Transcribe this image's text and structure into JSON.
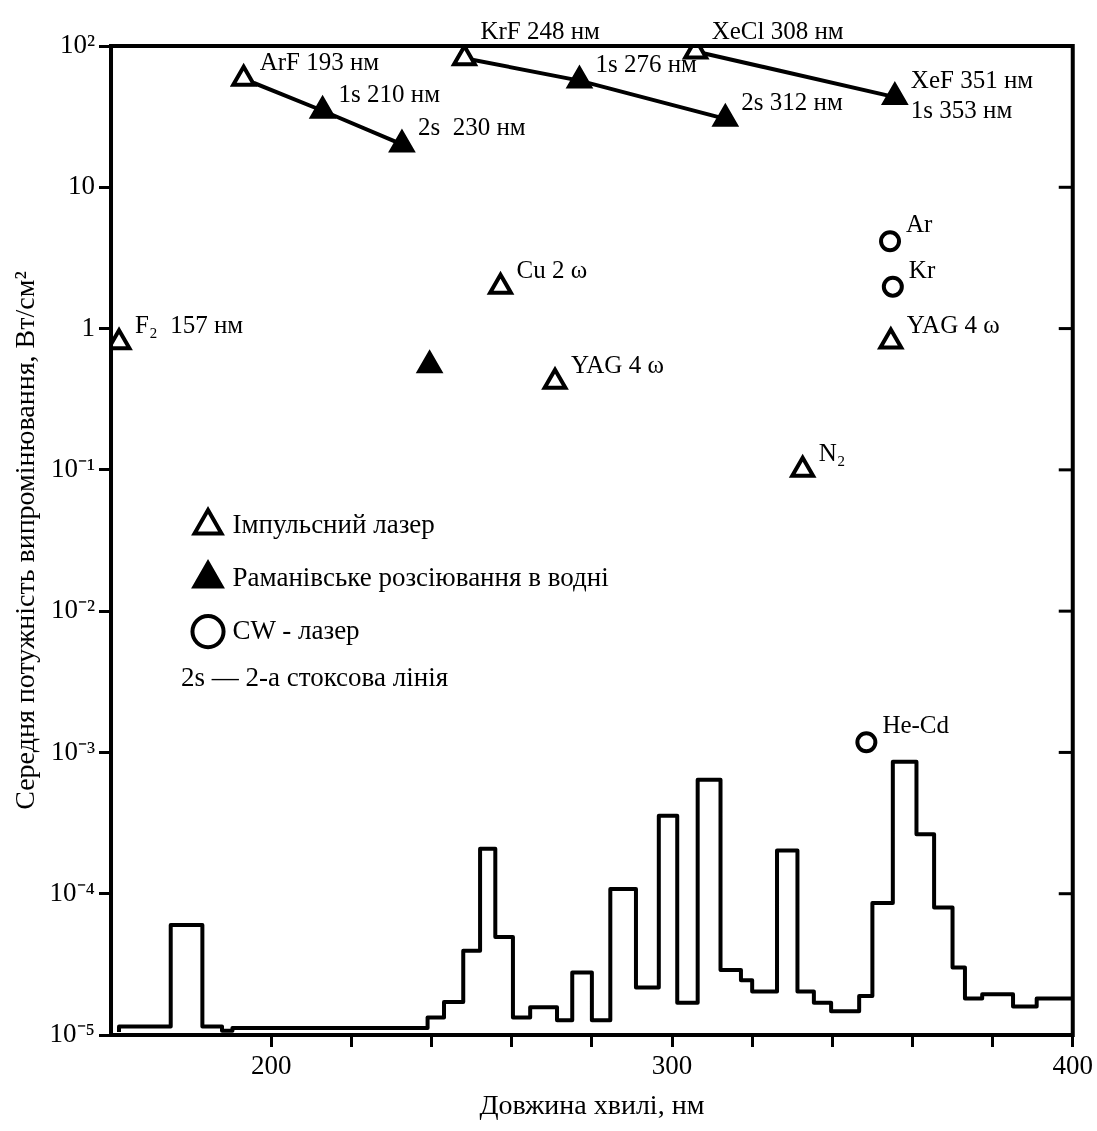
{
  "chart_data": {
    "type": "scatter",
    "xlabel": "Довжина хвилі, нм",
    "ylabel": "Середня потужність випромінювання, Вт/см²",
    "xlim": [
      160,
      400
    ],
    "xticks": [
      200,
      {
        "value": 220,
        "label": null
      },
      {
        "value": 240,
        "label": null
      },
      {
        "value": 260,
        "label": null
      },
      {
        "value": 280,
        "label": null
      },
      300,
      {
        "value": 320,
        "label": null
      },
      {
        "value": 340,
        "label": null
      },
      {
        "value": 360,
        "label": null
      },
      {
        "value": 380,
        "label": null
      },
      400
    ],
    "ylim": [
      1e-05,
      100
    ],
    "yticks": [
      {
        "value": 1e-05,
        "label": "10⁻⁵"
      },
      {
        "value": 0.0001,
        "label": "10⁻⁴"
      },
      {
        "value": 0.001,
        "label": "10⁻³"
      },
      {
        "value": 0.01,
        "label": "10⁻²"
      },
      {
        "value": 0.1,
        "label": "10⁻¹"
      },
      1,
      10,
      {
        "value": 100,
        "label": "10²"
      }
    ],
    "log": "y",
    "grid": false,
    "legend": "left",
    "series": [
      {
        "name": "Імпульсний лазер",
        "marker": "triangle",
        "color": "#ffffff",
        "x": [
          162,
          193.1,
          248.2,
          305.9,
          257.2,
          270.8,
          354.6,
          332.6
        ],
        "values": [
          0.8,
          58.6,
          82,
          91.5,
          1.98,
          0.42,
          0.81,
          0.1
        ]
      },
      {
        "name": "Раманівське розсіювання в водні",
        "marker": "triangle",
        "color": "#000000",
        "x": [
          212.8,
          232.6,
          276.9,
          313.3,
          355.6,
          239.5
        ],
        "values": [
          34.8,
          20.1,
          56.9,
          30.5,
          43.5,
          0.55
        ]
      },
      {
        "name": "CW - лазер",
        "marker": "circle",
        "color": "#ffffff",
        "x": [
          354.4,
          355.1,
          348.5
        ],
        "values": [
          4.15,
          1.98,
          0.00118
        ]
      },
      {
        "type": "line",
        "marker": "none",
        "color": "#000000",
        "x": [
          193.1,
          212.8,
          232.6
        ],
        "values": [
          58.6,
          34.8,
          20.1
        ]
      },
      {
        "type": "line",
        "marker": "none",
        "color": "#000000",
        "x": [
          248.2,
          276.9,
          313.3
        ],
        "values": [
          82,
          56.9,
          30.5
        ]
      },
      {
        "type": "line",
        "marker": "none",
        "color": "#000000",
        "x": [
          305.9,
          355.6
        ],
        "values": [
          91.5,
          43.5
        ]
      },
      {
        "type": "step",
        "marker": "none",
        "color": "#000000",
        "x": [
          162,
          174.9,
          182.8,
          187.7,
          190.3,
          239,
          243.1,
          247.9,
          252.1,
          255.9,
          260.3,
          264.6,
          271.3,
          275.1,
          280,
          284.6,
          291,
          296.7,
          301.3,
          306.4,
          312.1,
          317.2,
          320,
          326.2,
          331.3,
          335.4,
          339.7,
          346.7,
          350,
          355.1,
          361,
          365.4,
          370,
          373.1,
          377.4,
          385.1,
          391,
          396.2,
          400
        ],
        "values": [
          1.05e-05,
          1.15e-05,
          6e-05,
          1.15e-05,
          1.07e-05,
          1.12e-05,
          1.33e-05,
          1.71e-05,
          3.94e-05,
          0.000208,
          4.93e-05,
          1.33e-05,
          1.57e-05,
          1.27e-05,
          2.77e-05,
          1.27e-05,
          0.000108,
          2.17e-05,
          0.000357,
          1.69e-05,
          0.00064,
          2.88e-05,
          2.44e-05,
          2.03e-05,
          0.000202,
          2.03e-05,
          1.69e-05,
          1.47e-05,
          1.89e-05,
          8.6e-05,
          0.00086,
          0.000264,
          8e-05,
          3e-05,
          1.81e-05,
          1.94e-05,
          1.59e-05,
          1.81e-05,
          1.81e-05
        ]
      }
    ],
    "annotations": [
      {
        "text": "F₂  157 нм",
        "x": 162,
        "y": 0.8
      },
      {
        "text": "ArF 193 нм",
        "x": 193.1,
        "y": 58.6
      },
      {
        "text": "1s 210 нм",
        "x": 212.8,
        "y": 34.8
      },
      {
        "text": "2s  230 нм",
        "x": 232.6,
        "y": 20.1
      },
      {
        "text": "KrF 248 нм",
        "x": 248.2,
        "y": 82
      },
      {
        "text": "1s 276 нм",
        "x": 276.9,
        "y": 56.9
      },
      {
        "text": "2s 312 нм",
        "x": 313.3,
        "y": 30.5
      },
      {
        "text": "XeCl 308 нм",
        "x": 305.9,
        "y": 91.5
      },
      {
        "text": "XeF 351 нм",
        "x": 355.6,
        "y": 43.5
      },
      {
        "text": "1s 353 нм",
        "x": 355.6,
        "y": 43.5
      },
      {
        "text": "Cu 2 ω",
        "x": 257.2,
        "y": 1.98
      },
      {
        "text": "YAG 4 ω",
        "x": 270.8,
        "y": 0.42
      },
      {
        "text": "YAG 4 ω",
        "x": 354.6,
        "y": 0.81
      },
      {
        "text": "N₂",
        "x": 332.6,
        "y": 0.1
      },
      {
        "text": "Ar",
        "x": 354.4,
        "y": 4.15
      },
      {
        "text": "Kr",
        "x": 355.1,
        "y": 1.98
      },
      {
        "text": "He-Cd",
        "x": 348.5,
        "y": 0.00118
      },
      "2s — 2-а стоксова лінія"
    ]
  }
}
